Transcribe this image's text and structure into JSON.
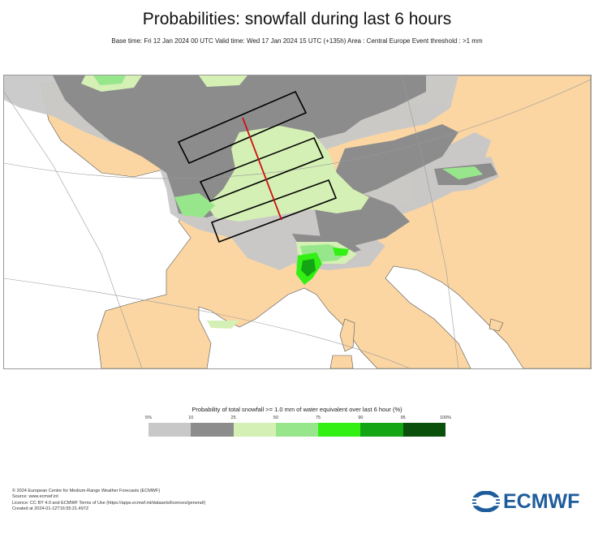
{
  "header": {
    "title": "Probabilities: snowfall during last 6 hours",
    "subtitle": "Base time: Fri 12 Jan 2024 00 UTC Valid time: Wed 17 Jan 2024 15 UTC (+135h) Area : Central Europe Event threshold : >1 mm"
  },
  "legend": {
    "title": "Probability of total snowfall >= 1.0 mm of water equivalent over last 6 hour (%)",
    "ticks": [
      "5%",
      "10",
      "25",
      "50",
      "75",
      "90",
      "95",
      "100%"
    ],
    "colors": [
      "#c8c8c8",
      "#8c8c8c",
      "#d4f0b4",
      "#98e68c",
      "#32f014",
      "#14a514",
      "#0a500a"
    ]
  },
  "map_colors": {
    "land": "#fbd6a3",
    "sea": "#ffffff",
    "cross_section_line": "#d01010",
    "boxes": "#000000"
  },
  "footer": {
    "line1": "© 2024 European Centre for Medium-Range Weather Forecasts (ECMWF)",
    "line2": "Source: www.ecmwf.int",
    "line3": "Licence: CC BY 4.0 and ECMWF Terms of Use (https://apps.ecmwf.int/datasets/licences/general/)",
    "line4": "Created at 2024-01-12T16:55:21.497Z"
  },
  "logo": {
    "text": "ECMWF",
    "icon": "ecmwf-logo-icon",
    "color": "#1f5c9c"
  }
}
